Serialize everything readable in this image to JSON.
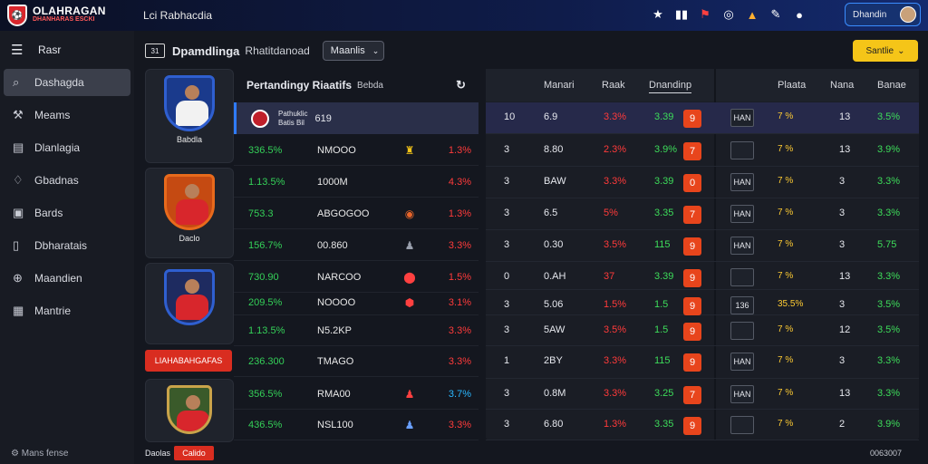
{
  "app": {
    "logo_name": "OLAHRAGAN",
    "logo_sub": "DHANHARAS ESCKI",
    "title": "Lci Rabhacdia",
    "user_label": "Dhandin"
  },
  "sidebar": {
    "menu_label": "Rasr",
    "items": [
      {
        "label": "Dashagda",
        "icon": "search-icon",
        "active": true
      },
      {
        "label": "Meams",
        "icon": "wrench-icon",
        "active": false
      },
      {
        "label": "Dlanlagia",
        "icon": "document-icon",
        "active": false
      },
      {
        "label": "Gbadnas",
        "icon": "shield-icon",
        "active": false
      },
      {
        "label": "Bards",
        "icon": "calendar-icon",
        "active": false
      },
      {
        "label": "Dbharatais",
        "icon": "phone-icon",
        "active": false
      },
      {
        "label": "Maandien",
        "icon": "globe-icon",
        "active": false
      },
      {
        "label": "Mantrie",
        "icon": "clipboard-icon",
        "active": false
      }
    ],
    "footer": "Mans fense"
  },
  "toolbar": {
    "title": "Dpamdlinga",
    "subtitle": "Rhatitdanoad",
    "select_value": "Maanlis",
    "yellow_button": "Santlie"
  },
  "matches": {
    "labels": [
      "Babdla",
      "Daclo",
      "",
      "",
      ""
    ],
    "badge": "LIAHABAHGAFAS"
  },
  "feed": {
    "title": "Pertandingy Riaatifs",
    "subtitle": "Bebda",
    "selected": {
      "line1": "Pathuklic",
      "line2": "Batis Bil",
      "score": "619"
    },
    "rows": [
      {
        "pct": "336.5%",
        "name": "NMOOO",
        "pct2": "1.3%"
      },
      {
        "pct": "1.13.5%",
        "name": "1000M",
        "pct2": "4.3%"
      },
      {
        "pct": "753.3",
        "name": "ABGOGOO",
        "pct2": "1.3%"
      },
      {
        "pct": "156.7%",
        "name": "00.860",
        "pct2": "3.3%"
      },
      {
        "pct": "730.90",
        "name": "NARCOO",
        "pct2": "1.5%"
      },
      {
        "pct": "209.5%",
        "name": "NOOOO",
        "pct2": "3.1%"
      },
      {
        "pct": "1.13.5%",
        "name": "N5.2KP",
        "pct2": "3.3%"
      },
      {
        "pct": "236.300",
        "name": "TMAGO",
        "pct2": "3.3%"
      },
      {
        "pct": "356.5%",
        "name": "RMA00",
        "pct2": "3.7%"
      },
      {
        "pct": "436.5%",
        "name": "NSL100",
        "pct2": "3.3%"
      }
    ]
  },
  "table": {
    "headers": [
      "Manari",
      "Raak",
      "Dnandinp",
      "Plaata",
      "Nana",
      "Banae"
    ],
    "rows": [
      {
        "rank": "10",
        "val": "6.9",
        "p1": "3.3%",
        "p2": "3.39",
        "odd": "9",
        "team": "HAN",
        "stars": "7 %",
        "n": "13",
        "g": "3.5%"
      },
      {
        "rank": "3",
        "val": "8.80",
        "p1": "2.3%",
        "p2": "3.9%",
        "odd": "7",
        "team": "",
        "stars": "7 %",
        "n": "13",
        "g": "3.9%"
      },
      {
        "rank": "3",
        "val": "BAW",
        "p1": "3.3%",
        "p2": "3.39",
        "odd": "0",
        "team": "HAN",
        "stars": "7 %",
        "n": "3",
        "g": "3.3%"
      },
      {
        "rank": "3",
        "val": "6.5",
        "p1": "5%",
        "p2": "3.35",
        "odd": "7",
        "team": "HAN",
        "stars": "7 %",
        "n": "3",
        "g": "3.3%"
      },
      {
        "rank": "3",
        "val": "0.30",
        "p1": "3.5%",
        "p2": "115",
        "odd": "9",
        "team": "HAN",
        "stars": "7 %",
        "n": "3",
        "g": "5.75"
      },
      {
        "rank": "0",
        "val": "0.AH",
        "p1": "37",
        "p2": "3.39",
        "odd": "9",
        "team": "",
        "stars": "7 %",
        "n": "13",
        "g": "3.3%"
      },
      {
        "rank": "3",
        "val": "5.06",
        "p1": "1.5%",
        "p2": "1.5",
        "odd": "9",
        "team": "136",
        "stars": "35.5%",
        "n": "3",
        "g": "3.5%"
      },
      {
        "rank": "3",
        "val": "5AW",
        "p1": "3.5%",
        "p2": "1.5",
        "odd": "9",
        "team": "",
        "stars": "7 %",
        "n": "12",
        "g": "3.5%"
      },
      {
        "rank": "1",
        "val": "2BY",
        "p1": "3.3%",
        "p2": "115",
        "odd": "9",
        "team": "HAN",
        "stars": "7 %",
        "n": "3",
        "g": "3.3%"
      },
      {
        "rank": "3",
        "val": "0.8M",
        "p1": "3.3%",
        "p2": "3.25",
        "odd": "7",
        "team": "HAN",
        "stars": "7 %",
        "n": "13",
        "g": "3.3%"
      },
      {
        "rank": "3",
        "val": "6.80",
        "p1": "1.3%",
        "p2": "3.35",
        "odd": "9",
        "team": "",
        "stars": "7 %",
        "n": "2",
        "g": "3.9%"
      }
    ]
  },
  "bottom": {
    "left_label": "Daolas",
    "left_pill": "Calido",
    "right_label": "0063007"
  },
  "colors": {
    "accent": "#2f7bff",
    "brand_red": "#d92d20",
    "green": "#3ddc5a",
    "red": "#ff3a3a",
    "yellow": "#f5c518"
  }
}
